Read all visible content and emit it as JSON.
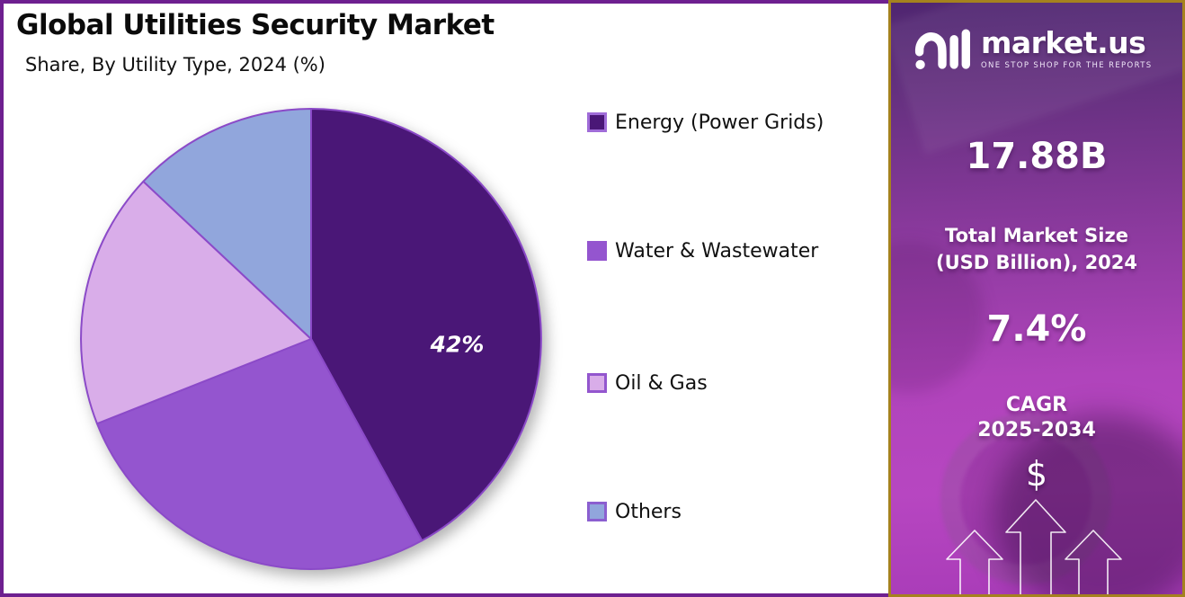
{
  "chart_data": {
    "type": "pie",
    "title": "Global Utilities Security Market",
    "subtitle": "Share, By Utility Type, 2024 (%)",
    "unit": "%",
    "start_angle_deg": 0,
    "direction": "clockwise",
    "legend_position": "right",
    "stroke_color": "#8B4AC8",
    "slices": [
      {
        "label": "Energy (Power Grids)",
        "value": 42,
        "data_label": "42%",
        "color": "#4A1777",
        "swatch_border": "#A06CD8"
      },
      {
        "label": "Water & Wastewater",
        "value": 27,
        "data_label": "",
        "color": "#9455CF",
        "swatch_border": "#9455CF"
      },
      {
        "label": "Oil & Gas",
        "value": 18,
        "data_label": "",
        "color": "#D9ADE9",
        "swatch_border": "#9356CE"
      },
      {
        "label": "Others",
        "value": 13,
        "data_label": "",
        "color": "#91A6DC",
        "swatch_border": "#8B5FD0"
      }
    ]
  },
  "sidebar": {
    "logo": {
      "brand": "market.us",
      "tagline": "ONE STOP SHOP FOR THE REPORTS"
    },
    "market_size": {
      "value": "17.88B",
      "label_line1": "Total Market Size",
      "label_line2": "(USD Billion), 2024"
    },
    "cagr": {
      "value": "7.4%",
      "label_line1": "CAGR",
      "label_line2": "2025-2034"
    },
    "dollar_symbol": "$",
    "colors": {
      "panel_border": "#A5821E",
      "gradient_top": "#4F2570",
      "gradient_middle": "#8D3A9F",
      "gradient_bottom": "#B746C1"
    }
  },
  "frame": {
    "border_color": "#6E2090",
    "background": "#FFFFFF"
  }
}
